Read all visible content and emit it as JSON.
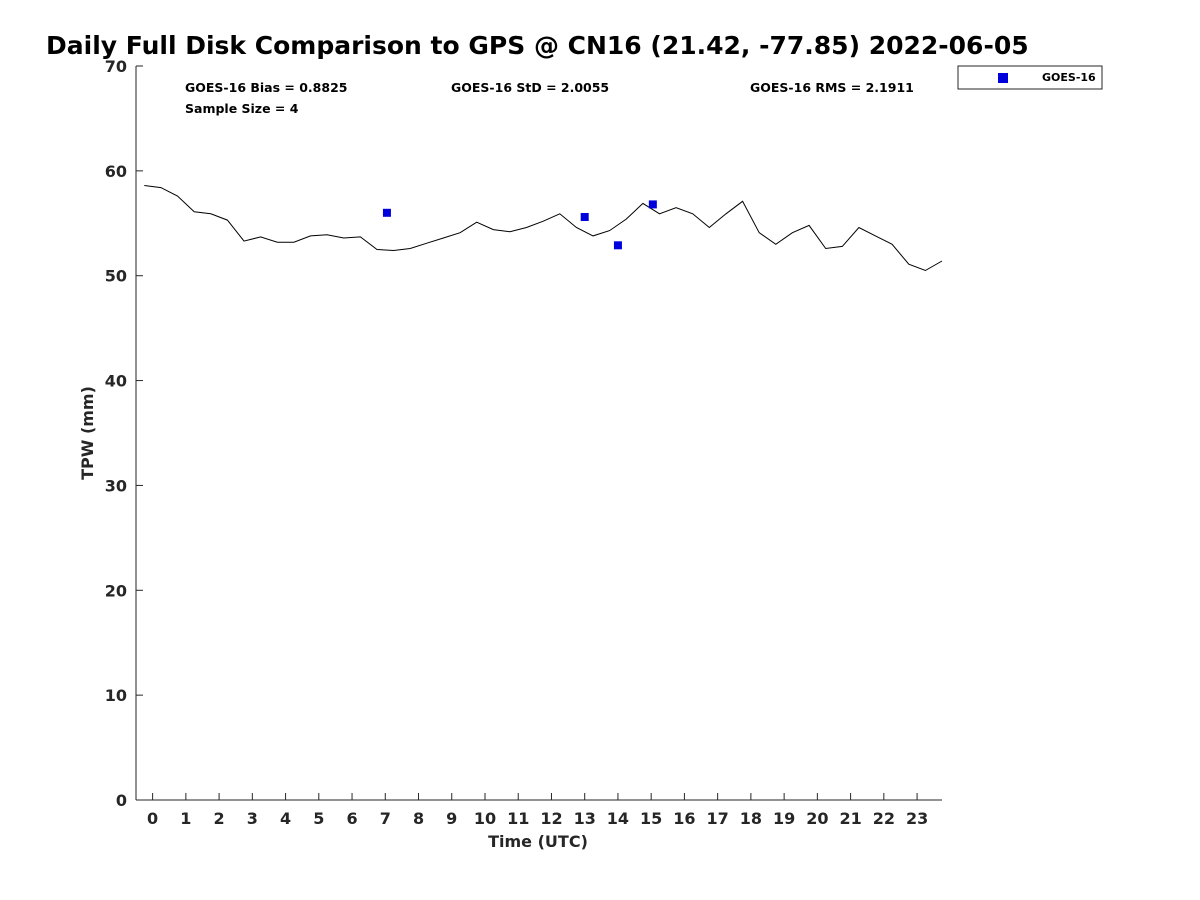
{
  "chart_data": {
    "type": "line",
    "title": "Daily Full Disk Comparison to GPS @ CN16 (21.42, -77.85) 2022-06-05",
    "xlabel": "Time (UTC)",
    "ylabel": "TPW (mm)",
    "xlim": [
      -0.5,
      23.75
    ],
    "ylim": [
      0,
      70
    ],
    "x_ticks": [
      "0",
      "1",
      "2",
      "3",
      "4",
      "5",
      "6",
      "7",
      "8",
      "9",
      "10",
      "11",
      "12",
      "13",
      "14",
      "15",
      "16",
      "17",
      "18",
      "19",
      "20",
      "21",
      "22",
      "23"
    ],
    "y_ticks": [
      "0",
      "10",
      "20",
      "30",
      "40",
      "50",
      "60",
      "70"
    ],
    "grid": false,
    "legend_position": "outside-top-right",
    "stats": {
      "bias": "GOES-16 Bias = 0.8825",
      "std": "GOES-16 StD = 2.0055",
      "rms": "GOES-16 RMS = 2.1911",
      "sample_size": "Sample Size = 4"
    },
    "series": [
      {
        "kind": "line",
        "color": "#000000",
        "x": [
          -0.25,
          0.25,
          0.75,
          1.25,
          1.75,
          2.25,
          2.75,
          3.25,
          3.75,
          4.25,
          4.75,
          5.25,
          5.75,
          6.25,
          6.75,
          7.25,
          7.75,
          8.25,
          8.75,
          9.25,
          9.75,
          10.25,
          10.75,
          11.25,
          11.75,
          12.25,
          12.75,
          13.25,
          13.75,
          14.25,
          14.75,
          15.25,
          15.75,
          16.25,
          16.75,
          17.25,
          17.75,
          18.25,
          18.75,
          19.25,
          19.75,
          20.25,
          20.75,
          21.25,
          21.75,
          22.25,
          22.75,
          23.25,
          23.75
        ],
        "y": [
          58.6,
          58.4,
          57.6,
          56.1,
          55.9,
          55.3,
          53.3,
          53.7,
          53.2,
          53.2,
          53.8,
          53.9,
          53.6,
          53.7,
          52.5,
          52.4,
          52.6,
          53.1,
          53.6,
          54.1,
          55.1,
          54.4,
          54.2,
          54.6,
          55.2,
          55.9,
          54.6,
          53.8,
          54.3,
          55.4,
          56.9,
          55.9,
          56.5,
          55.9,
          54.6,
          55.9,
          57.1,
          54.1,
          53.0,
          54.1,
          54.8,
          52.6,
          52.8,
          54.6,
          53.8,
          53.0,
          51.1,
          50.5,
          51.4
        ]
      },
      {
        "kind": "scatter",
        "name": "GOES-16",
        "color": "#0000dd",
        "x": [
          7.05,
          13.0,
          14.0,
          15.05
        ],
        "y": [
          56.0,
          55.6,
          52.9,
          56.8
        ]
      }
    ]
  }
}
